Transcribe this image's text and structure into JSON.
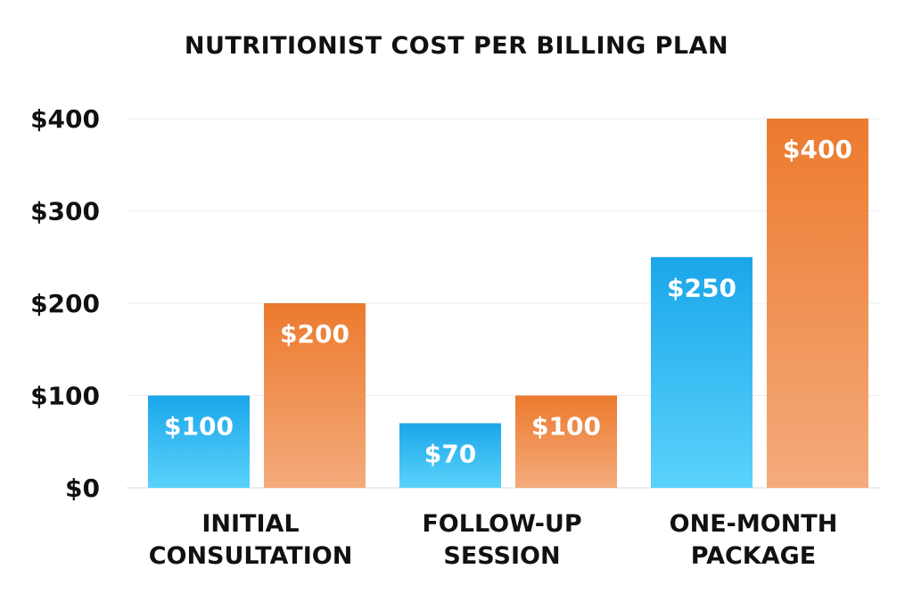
{
  "chart_data": {
    "type": "bar",
    "title": "NUTRITIONIST COST PER BILLING PLAN",
    "xlabel": "",
    "ylabel": "",
    "categories": [
      [
        "INITIAL",
        "CONSULTATION"
      ],
      [
        "FOLLOW-UP",
        "SESSION"
      ],
      [
        "ONE-MONTH",
        "PACKAGE"
      ]
    ],
    "series": [
      {
        "values": [
          100,
          70,
          250
        ],
        "labels": [
          "$100",
          "$70",
          "$250"
        ],
        "color_top": "#1aa6ea",
        "color_bottom": "#5ad2fb"
      },
      {
        "values": [
          200,
          100,
          400
        ],
        "labels": [
          "$200",
          "$100",
          "$400"
        ],
        "color_top": "#ec7a2e",
        "color_bottom": "#f4ab7c"
      }
    ],
    "ylim": [
      0,
      400
    ],
    "yticks": [
      0,
      100,
      200,
      300,
      400
    ],
    "ytick_labels": [
      "$0",
      "$100",
      "$200",
      "$300",
      "$400"
    ],
    "grid": true,
    "legend": "none"
  }
}
